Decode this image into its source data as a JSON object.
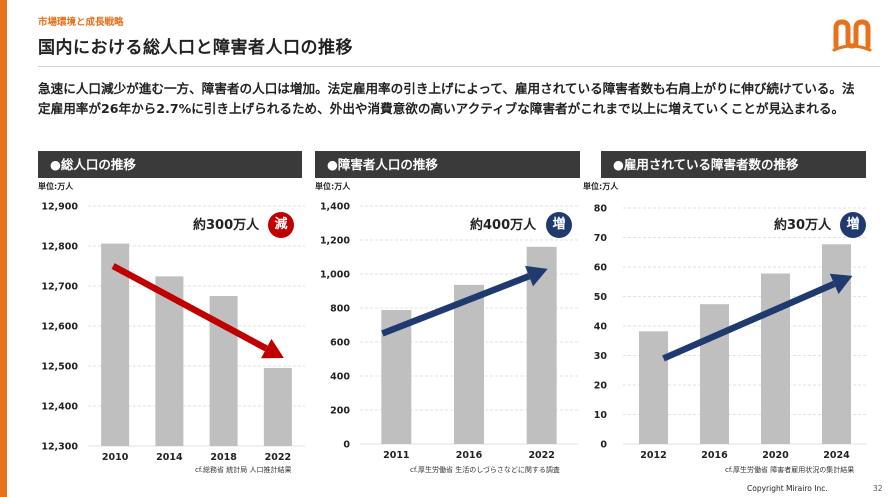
{
  "header": {
    "section": "市場環境と成長戦略",
    "title": "国内における総人口と障害者人口の推移"
  },
  "lead": "急速に人口減少が進む一方、障害者の人口は増加。法定雇用率の引き上げによって、雇用されている障害者数も右肩上がりに伸び続けている。法定雇用率が26年から2.7%に引き上げられるため、外出や消費意欲の高いアクティブな障害者がこれまで以上に増えていくことが見込まれる。",
  "panels": [
    {
      "heading": "●総人口の推移",
      "unit": "単位:万人",
      "callout": "約300万人",
      "badge": "減",
      "source": "cf.総務省 統計局 人口推計結果"
    },
    {
      "heading": "●障害者人口の推移",
      "unit": "単位:万人",
      "callout": "約400万人",
      "badge": "増",
      "source": "cf.厚生労働省 生活のしづらさなどに関する調査"
    },
    {
      "heading": "●雇用されている障害者数の推移",
      "unit": "単位:万人",
      "callout": "約30万人",
      "badge": "増",
      "source": "cf.厚生労働省 障害者雇用状況の集計結果"
    }
  ],
  "colors": {
    "accent": "#e8711c",
    "bar": "#bfbfbf",
    "down_arrow": "#c00000",
    "up_arrow": "#1e3a6e",
    "header_bg": "#3a3a3a"
  },
  "chart_data": [
    {
      "type": "bar",
      "title": "●総人口の推移",
      "ylabel": "万人",
      "categories": [
        "2010",
        "2014",
        "2018",
        "2022"
      ],
      "values": [
        12806,
        12724,
        12675,
        12495
      ],
      "ylim": [
        12300,
        12900
      ],
      "yticks": [
        12300,
        12400,
        12500,
        12600,
        12700,
        12800,
        12900
      ],
      "ytick_labels": [
        "12,300",
        "12,400",
        "12,500",
        "12,600",
        "12,700",
        "12,800",
        "12,900"
      ],
      "annotation": "約300万人 減",
      "trend": "down"
    },
    {
      "type": "bar",
      "title": "●障害者人口の推移",
      "ylabel": "万人",
      "categories": [
        "2011",
        "2016",
        "2022"
      ],
      "values": [
        788,
        936,
        1160
      ],
      "ylim": [
        0,
        1400
      ],
      "yticks": [
        0,
        200,
        400,
        600,
        800,
        1000,
        1200,
        1400
      ],
      "ytick_labels": [
        "0",
        "200",
        "400",
        "600",
        "800",
        "1,000",
        "1,200",
        "1,400"
      ],
      "annotation": "約400万人 増",
      "trend": "up"
    },
    {
      "type": "bar",
      "title": "●雇用されている障害者数の推移",
      "ylabel": "万人",
      "categories": [
        "2012",
        "2016",
        "2020",
        "2024"
      ],
      "values": [
        38.2,
        47.4,
        57.8,
        67.7
      ],
      "ylim": [
        0,
        80
      ],
      "yticks": [
        0,
        10,
        20,
        30,
        40,
        50,
        60,
        70,
        80
      ],
      "ytick_labels": [
        "0",
        "10",
        "20",
        "30",
        "40",
        "50",
        "60",
        "70",
        "80"
      ],
      "annotation": "約30万人 増",
      "trend": "up"
    }
  ],
  "footer": {
    "copyright": "Copyright Mirairo Inc.",
    "page": "32"
  }
}
